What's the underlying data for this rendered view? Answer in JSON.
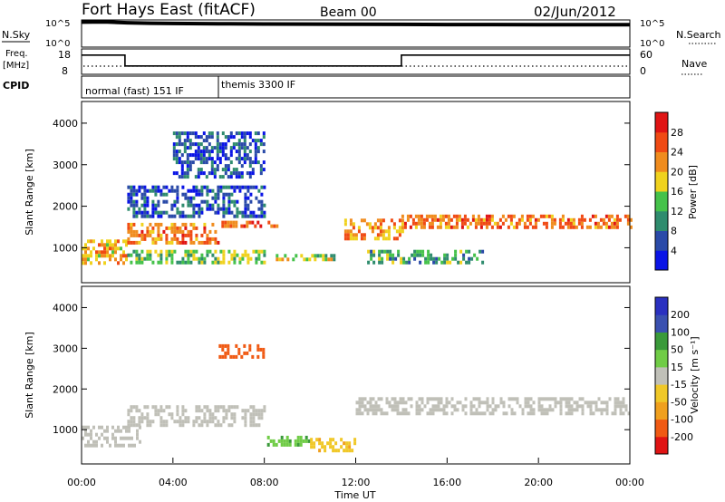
{
  "header": {
    "title": "Fort Hays East (fitACF)",
    "beam": "Beam 00",
    "date": "02/Jun/2012"
  },
  "top_panels": {
    "nsky_label": "N.Sky",
    "nsky_ticks": [
      "10^5",
      "10^0"
    ],
    "nsearch_label": "N.Search",
    "nsearch_ticks": [
      "10^5",
      "10^0"
    ],
    "freq_label_1": "Freq.",
    "freq_label_2": "[MHz]",
    "freq_ticks": [
      "18",
      "8"
    ],
    "nave_label": "Nave",
    "nave_ticks": [
      "60",
      "0"
    ],
    "cpid_label": "CPID",
    "cpid_segments": [
      "normal (fast) 151 IF",
      "themis 3300 IF"
    ]
  },
  "colors": {
    "power_scale": [
      "#0a14e6",
      "#2a4aa8",
      "#2f8c6e",
      "#45c24a",
      "#f0d21e",
      "#f08c1e",
      "#f04a14",
      "#e01414"
    ],
    "velocity_scale": [
      "#e01414",
      "#f05a14",
      "#f0a01e",
      "#f0c828",
      "#c0c0b8",
      "#70cc46",
      "#3a9a3a",
      "#3a50b0",
      "#2a30c0"
    ],
    "ground_scatter": "#b8b8b0"
  },
  "chart_data": [
    {
      "type": "line",
      "panel": "sky-noise",
      "ylabel": "N.Sky",
      "y_scale": "log",
      "ylim": [
        1,
        100000
      ],
      "x_range": [
        "00:00",
        "24:00"
      ],
      "series": [
        {
          "name": "N.Sky",
          "x": [
            0,
            1,
            2,
            3,
            4,
            6,
            8,
            10,
            12,
            14,
            16,
            18,
            20,
            22,
            24
          ],
          "values": [
            40000,
            45000,
            30000,
            25000,
            22000,
            20000,
            18000,
            17000,
            16000,
            15000,
            14000,
            14000,
            13000,
            13000,
            13000
          ]
        }
      ]
    },
    {
      "type": "line",
      "panel": "frequency",
      "ylabel": "Freq. [MHz]",
      "ylim": [
        8,
        18
      ],
      "ylim_right": [
        0,
        60
      ],
      "x_range": [
        "00:00",
        "24:00"
      ],
      "series": [
        {
          "name": "Freq.",
          "x": [
            0,
            1.9,
            1.9,
            14,
            14,
            24
          ],
          "values": [
            16,
            16,
            11,
            11,
            16,
            16
          ]
        }
      ]
    },
    {
      "type": "heatmap",
      "panel": "power",
      "title": "",
      "xlabel": "",
      "ylabel": "Slant Range [km]",
      "colorbar_label": "Power [dB]",
      "colorbar_ticks": [
        "28",
        "24",
        "20",
        "16",
        "12",
        "8",
        "4"
      ],
      "colorbar_range": [
        0,
        32
      ],
      "x_range": [
        "00:00",
        "24:00"
      ],
      "y_ticks": [
        "4000",
        "3000",
        "2000",
        "1000"
      ],
      "ylim": [
        180,
        4500
      ],
      "scatter_bands": [
        {
          "x_start": 0.0,
          "x_end": 2.0,
          "range_km_start": 650,
          "range_km_end": 1200,
          "power_db": 20
        },
        {
          "x_start": 2.0,
          "x_end": 6.0,
          "range_km_start": 1100,
          "range_km_end": 1600,
          "power_db": 24
        },
        {
          "x_start": 6.0,
          "x_end": 8.5,
          "range_km_start": 1500,
          "range_km_end": 1650,
          "power_db": 26
        },
        {
          "x_start": 2.0,
          "x_end": 8.0,
          "range_km_start": 650,
          "range_km_end": 950,
          "power_db": 14
        },
        {
          "x_start": 8.5,
          "x_end": 11.0,
          "range_km_start": 700,
          "range_km_end": 850,
          "power_db": 16
        },
        {
          "x_start": 11.5,
          "x_end": 14.0,
          "range_km_start": 1200,
          "range_km_end": 1700,
          "power_db": 22
        },
        {
          "x_start": 14.0,
          "x_end": 24.0,
          "range_km_start": 1500,
          "range_km_end": 1800,
          "power_db": 24
        },
        {
          "x_start": 12.5,
          "x_end": 17.5,
          "range_km_start": 650,
          "range_km_end": 950,
          "power_db": 12
        },
        {
          "x_start": 4.0,
          "x_end": 8.0,
          "range_km_start": 2700,
          "range_km_end": 3800,
          "power_db": 6
        },
        {
          "x_start": 2.0,
          "x_end": 8.0,
          "range_km_start": 1800,
          "range_km_end": 2500,
          "power_db": 6
        }
      ]
    },
    {
      "type": "heatmap",
      "panel": "velocity",
      "title": "",
      "xlabel": "Time UT",
      "ylabel": "Slant Range [km]",
      "colorbar_label": "Velocity [m s⁻¹]",
      "colorbar_ticks": [
        "200",
        "100",
        "50",
        "15",
        "-15",
        "-50",
        "-100",
        "-200"
      ],
      "colorbar_range": [
        -250,
        250
      ],
      "x_ticks": [
        "00:00",
        "04:00",
        "08:00",
        "12:00",
        "16:00",
        "20:00",
        "00:00"
      ],
      "y_ticks": [
        "4000",
        "3000",
        "2000",
        "1000"
      ],
      "ylim": [
        180,
        4500
      ],
      "scatter_bands": [
        {
          "x_start": 0.0,
          "x_end": 2.5,
          "range_km_start": 650,
          "range_km_end": 1100,
          "velocity": 0
        },
        {
          "x_start": 2.0,
          "x_end": 8.0,
          "range_km_start": 1100,
          "range_km_end": 1600,
          "velocity": 0
        },
        {
          "x_start": 8.0,
          "x_end": 10.0,
          "range_km_start": 650,
          "range_km_end": 850,
          "velocity": 40
        },
        {
          "x_start": 10.0,
          "x_end": 12.0,
          "range_km_start": 500,
          "range_km_end": 800,
          "velocity": -40
        },
        {
          "x_start": 12.0,
          "x_end": 24.0,
          "range_km_start": 1400,
          "range_km_end": 1800,
          "velocity": 0
        },
        {
          "x_start": 6.0,
          "x_end": 8.0,
          "range_km_start": 2800,
          "range_km_end": 3100,
          "velocity": -150
        }
      ]
    }
  ],
  "time_axis": {
    "xlabel": "Time UT",
    "ticks": [
      "00:00",
      "04:00",
      "08:00",
      "12:00",
      "16:00",
      "20:00",
      "00:00"
    ]
  }
}
